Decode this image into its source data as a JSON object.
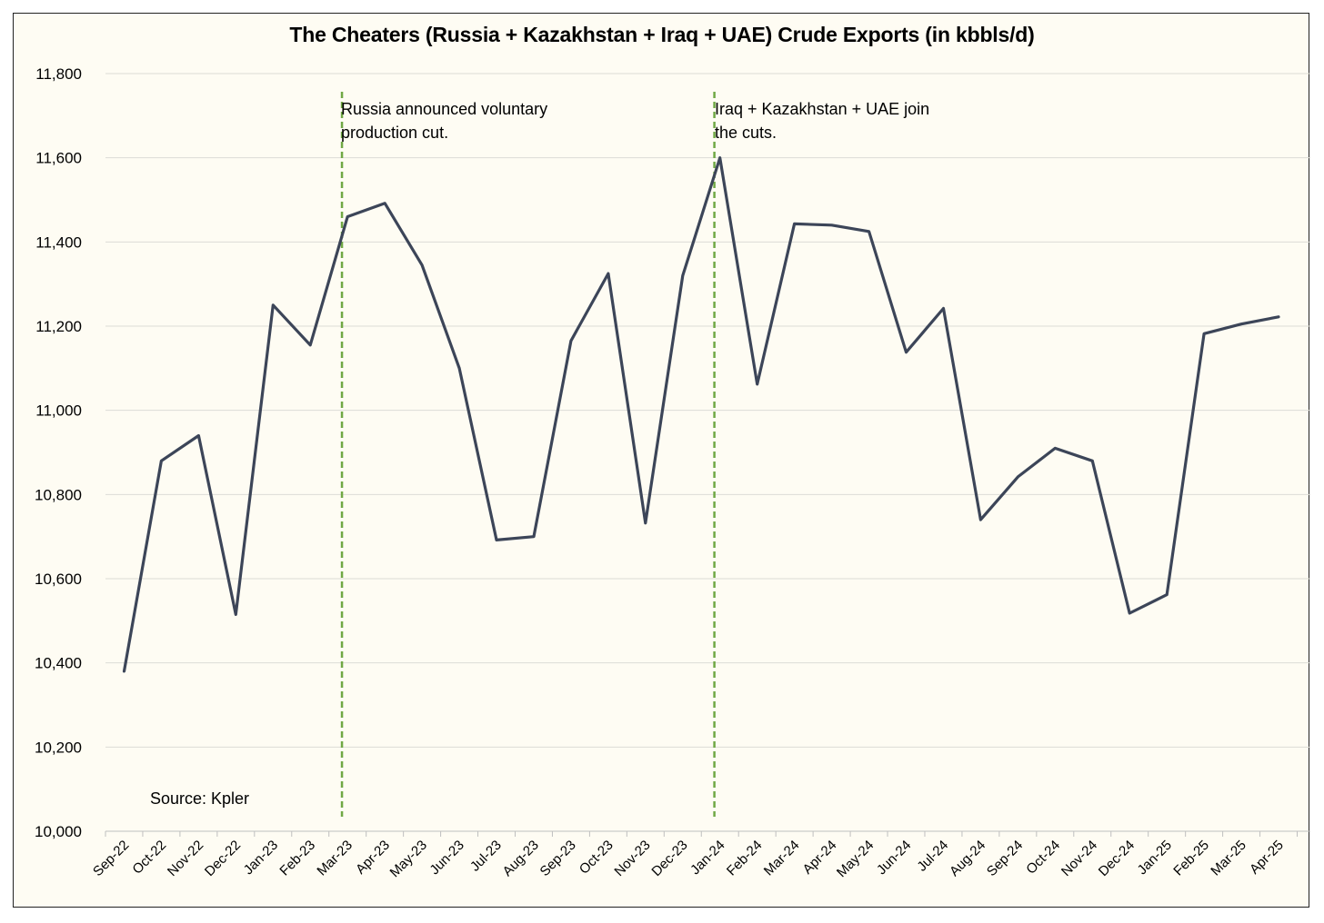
{
  "chart_data": {
    "type": "line",
    "title": "The Cheaters (Russia + Kazakhstan + Iraq + UAE) Crude Exports (in kbbls/d)",
    "categories": [
      "Sep-22",
      "Oct-22",
      "Nov-22",
      "Dec-22",
      "Jan-23",
      "Feb-23",
      "Mar-23",
      "Apr-23",
      "May-23",
      "Jun-23",
      "Jul-23",
      "Aug-23",
      "Sep-23",
      "Oct-23",
      "Nov-23",
      "Dec-23",
      "Jan-24",
      "Feb-24",
      "Mar-24",
      "Apr-24",
      "May-24",
      "Jun-24",
      "Jul-24",
      "Aug-24",
      "Sep-24",
      "Oct-24",
      "Nov-24",
      "Dec-24",
      "Jan-25",
      "Feb-25",
      "Mar-25",
      "Apr-25"
    ],
    "series": [
      {
        "values": [
          10380,
          10880,
          10940,
          10515,
          11250,
          11155,
          11460,
          11492,
          11345,
          11100,
          10692,
          10700,
          11165,
          11325,
          10732,
          11320,
          11600,
          11062,
          11443,
          11440,
          11425,
          11138,
          11242,
          10740,
          10842,
          10910,
          10880,
          10518,
          10562,
          11182,
          11205,
          11222
        ]
      }
    ],
    "ylim": [
      10000,
      11800
    ],
    "yticks": [
      10000,
      10200,
      10400,
      10600,
      10800,
      11000,
      11200,
      11400,
      11600,
      11800
    ],
    "ytick_labels": [
      "10,000",
      "10,200",
      "10,400",
      "10,600",
      "10,800",
      "11,000",
      "11,200",
      "11,400",
      "11,600",
      "11,800"
    ],
    "grid": true,
    "line_color": "#3c4558",
    "marker_color": "#70a845",
    "vlines": [
      {
        "x": "Mar-23",
        "label": "Russia announced voluntary production cut."
      },
      {
        "x": "Jan-24",
        "label": "Iraq + Kazakhstan + UAE join the cuts."
      }
    ],
    "annotations": {
      "russia_line1": "Russia announced voluntary",
      "russia_line2": "production cut.",
      "iraq_line1": "Iraq + Kazakhstan + UAE join",
      "iraq_line2": "the cuts."
    },
    "source": "Source: Kpler"
  }
}
